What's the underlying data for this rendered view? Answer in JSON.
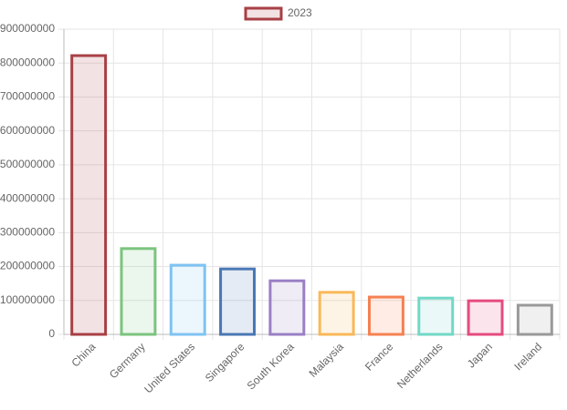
{
  "chart_data": {
    "type": "bar",
    "categories": [
      "China",
      "Germany",
      "United States",
      "Singapore",
      "South Korea",
      "Malaysia",
      "France",
      "Netherlands",
      "Japan",
      "Ireland"
    ],
    "series": [
      {
        "name": "2023",
        "colors": [
          "#a83f45",
          "#7bc47f",
          "#7fc3f2",
          "#4a77b4",
          "#9a7fc4",
          "#f9b858",
          "#f58152",
          "#72d8c7",
          "#e54b80",
          "#999999"
        ],
        "values": [
          822000000,
          253000000,
          204000000,
          193000000,
          158000000,
          124000000,
          110000000,
          107000000,
          99000000,
          86000000
        ]
      }
    ],
    "ylim": [
      0,
      900000000
    ],
    "yticks": [
      0,
      100000000,
      200000000,
      300000000,
      400000000,
      500000000,
      600000000,
      700000000,
      800000000,
      900000000
    ],
    "grid": true
  }
}
